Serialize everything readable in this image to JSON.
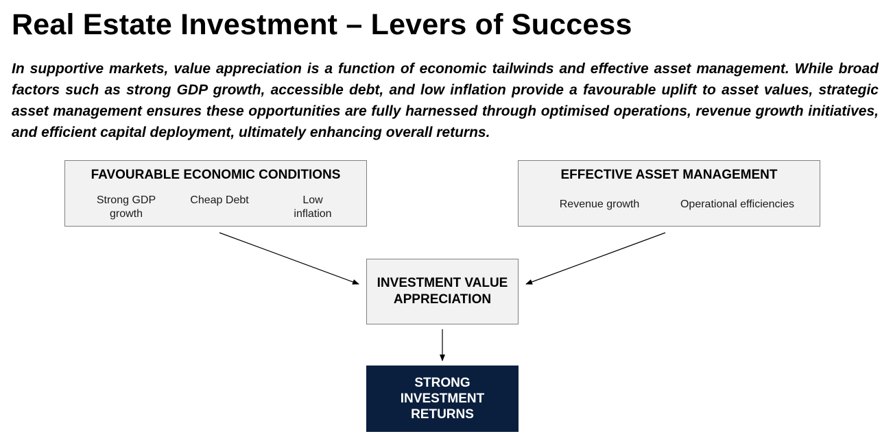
{
  "header": {
    "title": "Real Estate Investment – Levers of Success",
    "intro": "In supportive markets, value appreciation is a function of economic tailwinds and effective asset management. While broad factors such as strong GDP growth, accessible debt, and low inflation provide a favourable uplift to asset values, strategic asset management ensures these opportunities are fully harnessed through optimised operations, revenue growth initiatives, and efficient capital deployment, ultimately enhancing overall returns."
  },
  "diagram": {
    "economic_conditions": {
      "title": "FAVOURABLE ECONOMIC CONDITIONS",
      "factors": [
        "Strong GDP\ngrowth",
        "Cheap Debt",
        "Low\ninflation"
      ]
    },
    "asset_management": {
      "title": "EFFECTIVE ASSET MANAGEMENT",
      "factors": [
        "Revenue growth",
        "Operational efficiencies"
      ]
    },
    "value_appreciation": {
      "label": "INVESTMENT VALUE\nAPPRECIATION"
    },
    "returns": {
      "label": "STRONG\nINVESTMENT\nRETURNS"
    }
  },
  "colors": {
    "box_fill": "#f2f2f2",
    "box_border": "#808080",
    "returns_fill": "#0a1f3d",
    "returns_text": "#ffffff",
    "arrow": "#000000"
  }
}
